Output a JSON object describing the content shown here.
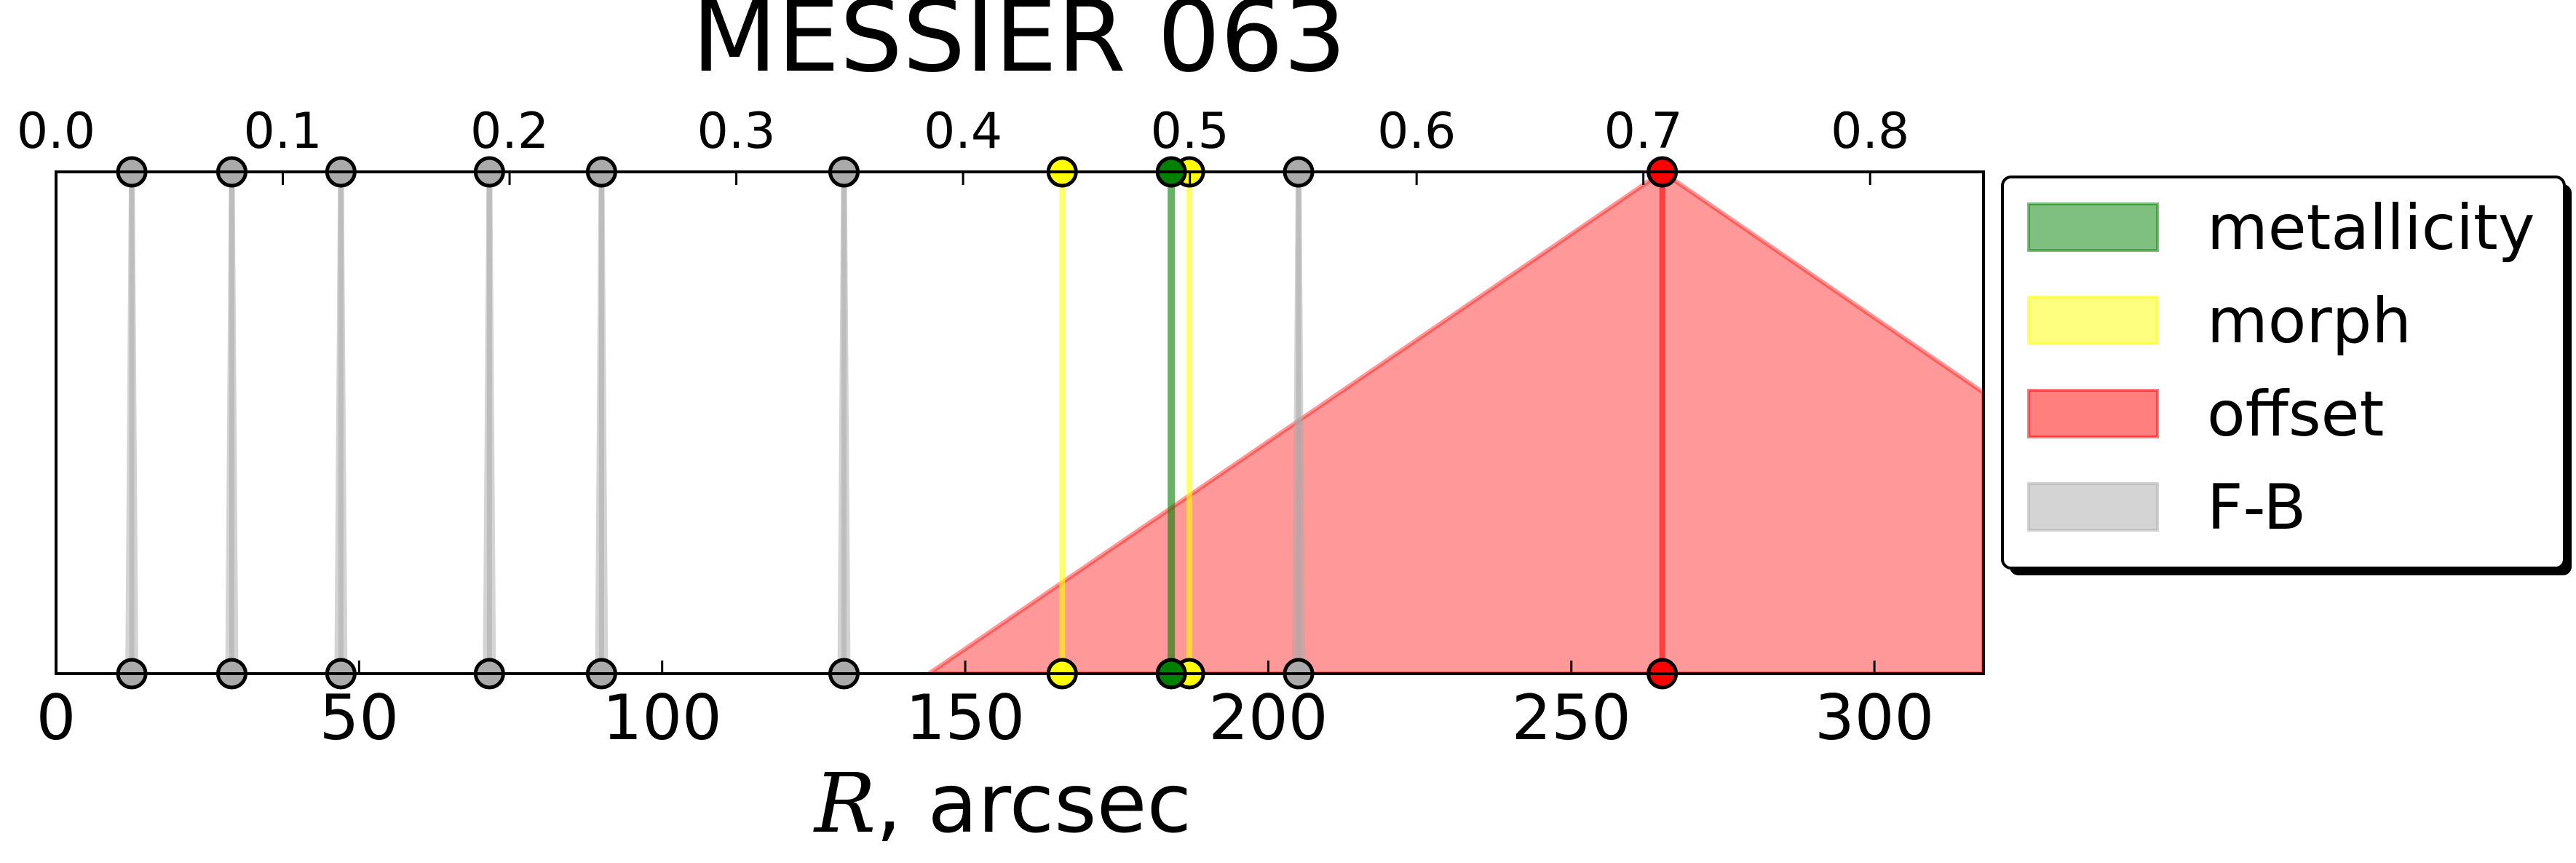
{
  "chart_data": {
    "type": "line",
    "title": "MESSIER 063",
    "xlabel_italic": "R",
    "xlabel_rest": ", arcsec",
    "xlim": [
      0,
      318
    ],
    "x_ticks": [
      0,
      50,
      100,
      150,
      200,
      250,
      300
    ],
    "top_xlim": [
      0.0,
      0.85
    ],
    "top_ticks": [
      "0.0",
      "0.1",
      "0.2",
      "0.3",
      "0.4",
      "0.5",
      "0.6",
      "0.7",
      "0.8"
    ],
    "ylim": [
      0,
      1
    ],
    "grid": false,
    "legend_position": "right",
    "legend": [
      {
        "label": "metallicity",
        "color": "#008000"
      },
      {
        "label": "morph",
        "color": "#ffff00"
      },
      {
        "label": "offset",
        "color": "#ff0000"
      },
      {
        "label": "F-B",
        "color": "#aaaaaa"
      }
    ],
    "series": [
      {
        "name": "F-B",
        "color": "#aaaaaa",
        "x": [
          12.5,
          29,
          47,
          71.5,
          90,
          130,
          205
        ]
      },
      {
        "name": "morph",
        "color": "#ffff00",
        "x": [
          166,
          187
        ]
      },
      {
        "name": "metallicity",
        "color": "#008000",
        "x": [
          184
        ]
      },
      {
        "name": "offset",
        "color": "#ff0000",
        "x": [
          265
        ],
        "band": [
          [
            144,
            0
          ],
          [
            265,
            1
          ],
          [
            318,
            0.56
          ],
          [
            318,
            0
          ]
        ]
      }
    ]
  }
}
